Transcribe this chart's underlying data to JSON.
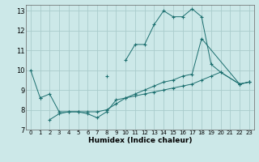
{
  "xlabel": "Humidex (Indice chaleur)",
  "bg_color": "#cce8e8",
  "grid_color": "#aacccc",
  "line_color": "#1a6e6e",
  "line1_x": [
    0,
    1,
    2,
    3,
    4,
    5,
    6,
    7,
    8,
    9,
    10,
    11,
    12,
    13,
    14,
    15,
    16,
    17,
    18,
    19,
    20,
    22,
    23
  ],
  "line1_y": [
    10.0,
    8.6,
    null,
    null,
    null,
    null,
    null,
    null,
    9.7,
    null,
    10.5,
    11.3,
    11.3,
    12.3,
    13.0,
    12.7,
    12.7,
    13.1,
    12.7,
    10.3,
    9.9,
    9.3,
    9.4
  ],
  "line2_x": [
    2,
    3,
    4,
    5,
    6,
    7,
    8,
    9,
    10,
    11,
    12,
    13,
    14,
    15,
    16,
    17,
    18,
    19,
    20,
    22,
    23
  ],
  "line2_y": [
    7.5,
    7.8,
    7.9,
    7.9,
    7.8,
    7.6,
    7.9,
    8.5,
    8.6,
    8.7,
    8.8,
    8.9,
    9.0,
    9.1,
    9.2,
    9.3,
    9.5,
    9.7,
    9.9,
    9.3,
    9.4
  ],
  "line3_x": [
    1,
    2,
    3,
    4,
    5,
    6,
    7,
    8,
    9,
    10,
    11,
    12,
    13,
    14,
    15,
    16,
    17,
    18,
    22,
    23
  ],
  "line3_y": [
    8.6,
    8.8,
    7.9,
    7.9,
    7.9,
    7.9,
    7.9,
    8.0,
    8.3,
    8.6,
    8.8,
    9.0,
    9.2,
    9.4,
    9.5,
    9.7,
    9.8,
    11.6,
    9.3,
    9.4
  ],
  "xlim": [
    -0.5,
    23.5
  ],
  "ylim": [
    7,
    13.3
  ],
  "yticks": [
    7,
    8,
    9,
    10,
    11,
    12,
    13
  ],
  "xticks": [
    0,
    1,
    2,
    3,
    4,
    5,
    6,
    7,
    8,
    9,
    10,
    11,
    12,
    13,
    14,
    15,
    16,
    17,
    18,
    19,
    20,
    21,
    22,
    23
  ]
}
